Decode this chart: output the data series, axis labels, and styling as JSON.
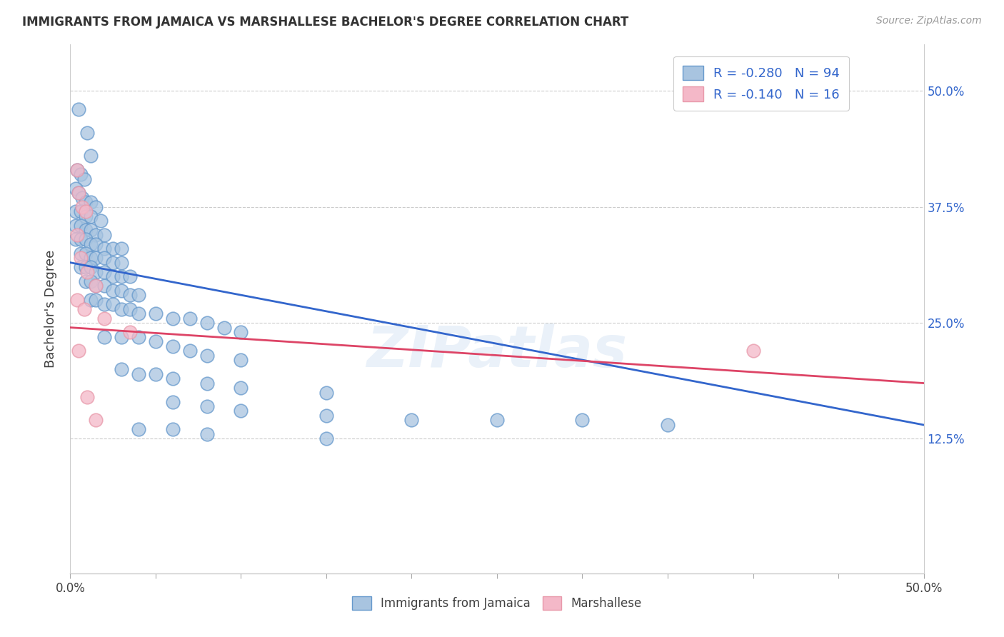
{
  "title": "IMMIGRANTS FROM JAMAICA VS MARSHALLESE BACHELOR'S DEGREE CORRELATION CHART",
  "source": "Source: ZipAtlas.com",
  "ylabel": "Bachelor's Degree",
  "xlim": [
    0.0,
    0.5
  ],
  "ylim": [
    -0.02,
    0.55
  ],
  "ytick_labels": [
    "12.5%",
    "25.0%",
    "37.5%",
    "50.0%"
  ],
  "ytick_values": [
    0.125,
    0.25,
    0.375,
    0.5
  ],
  "xtick_values": [
    0.0,
    0.05,
    0.1,
    0.15,
    0.2,
    0.25,
    0.3,
    0.35,
    0.4,
    0.45,
    0.5
  ],
  "legend_blue_R": "R = -0.280",
  "legend_blue_N": "N = 94",
  "legend_pink_R": "R = -0.140",
  "legend_pink_N": "N = 16",
  "legend_label_blue": "Immigrants from Jamaica",
  "legend_label_pink": "Marshallese",
  "blue_color": "#a8c4e0",
  "pink_color": "#f4b8c8",
  "blue_edge_color": "#6699cc",
  "pink_edge_color": "#e899aa",
  "blue_line_color": "#3366cc",
  "pink_line_color": "#dd4466",
  "watermark": "ZIPatlas",
  "blue_scatter": [
    [
      0.005,
      0.48
    ],
    [
      0.01,
      0.455
    ],
    [
      0.012,
      0.43
    ],
    [
      0.004,
      0.415
    ],
    [
      0.006,
      0.41
    ],
    [
      0.008,
      0.405
    ],
    [
      0.003,
      0.395
    ],
    [
      0.005,
      0.39
    ],
    [
      0.007,
      0.385
    ],
    [
      0.009,
      0.38
    ],
    [
      0.012,
      0.38
    ],
    [
      0.015,
      0.375
    ],
    [
      0.003,
      0.37
    ],
    [
      0.006,
      0.37
    ],
    [
      0.009,
      0.365
    ],
    [
      0.012,
      0.365
    ],
    [
      0.018,
      0.36
    ],
    [
      0.003,
      0.355
    ],
    [
      0.006,
      0.355
    ],
    [
      0.009,
      0.35
    ],
    [
      0.012,
      0.35
    ],
    [
      0.015,
      0.345
    ],
    [
      0.02,
      0.345
    ],
    [
      0.003,
      0.34
    ],
    [
      0.006,
      0.34
    ],
    [
      0.009,
      0.34
    ],
    [
      0.012,
      0.335
    ],
    [
      0.015,
      0.335
    ],
    [
      0.02,
      0.33
    ],
    [
      0.025,
      0.33
    ],
    [
      0.03,
      0.33
    ],
    [
      0.006,
      0.325
    ],
    [
      0.009,
      0.325
    ],
    [
      0.012,
      0.32
    ],
    [
      0.015,
      0.32
    ],
    [
      0.02,
      0.32
    ],
    [
      0.025,
      0.315
    ],
    [
      0.03,
      0.315
    ],
    [
      0.006,
      0.31
    ],
    [
      0.009,
      0.31
    ],
    [
      0.012,
      0.31
    ],
    [
      0.015,
      0.305
    ],
    [
      0.02,
      0.305
    ],
    [
      0.025,
      0.3
    ],
    [
      0.03,
      0.3
    ],
    [
      0.035,
      0.3
    ],
    [
      0.009,
      0.295
    ],
    [
      0.012,
      0.295
    ],
    [
      0.015,
      0.29
    ],
    [
      0.02,
      0.29
    ],
    [
      0.025,
      0.285
    ],
    [
      0.03,
      0.285
    ],
    [
      0.035,
      0.28
    ],
    [
      0.04,
      0.28
    ],
    [
      0.012,
      0.275
    ],
    [
      0.015,
      0.275
    ],
    [
      0.02,
      0.27
    ],
    [
      0.025,
      0.27
    ],
    [
      0.03,
      0.265
    ],
    [
      0.035,
      0.265
    ],
    [
      0.04,
      0.26
    ],
    [
      0.05,
      0.26
    ],
    [
      0.06,
      0.255
    ],
    [
      0.07,
      0.255
    ],
    [
      0.08,
      0.25
    ],
    [
      0.09,
      0.245
    ],
    [
      0.1,
      0.24
    ],
    [
      0.02,
      0.235
    ],
    [
      0.03,
      0.235
    ],
    [
      0.04,
      0.235
    ],
    [
      0.05,
      0.23
    ],
    [
      0.06,
      0.225
    ],
    [
      0.07,
      0.22
    ],
    [
      0.08,
      0.215
    ],
    [
      0.1,
      0.21
    ],
    [
      0.03,
      0.2
    ],
    [
      0.04,
      0.195
    ],
    [
      0.05,
      0.195
    ],
    [
      0.06,
      0.19
    ],
    [
      0.08,
      0.185
    ],
    [
      0.1,
      0.18
    ],
    [
      0.15,
      0.175
    ],
    [
      0.06,
      0.165
    ],
    [
      0.08,
      0.16
    ],
    [
      0.1,
      0.155
    ],
    [
      0.15,
      0.15
    ],
    [
      0.2,
      0.145
    ],
    [
      0.25,
      0.145
    ],
    [
      0.3,
      0.145
    ],
    [
      0.04,
      0.135
    ],
    [
      0.06,
      0.135
    ],
    [
      0.08,
      0.13
    ],
    [
      0.15,
      0.125
    ],
    [
      0.35,
      0.14
    ]
  ],
  "pink_scatter": [
    [
      0.004,
      0.415
    ],
    [
      0.005,
      0.39
    ],
    [
      0.007,
      0.375
    ],
    [
      0.009,
      0.37
    ],
    [
      0.004,
      0.345
    ],
    [
      0.006,
      0.32
    ],
    [
      0.01,
      0.305
    ],
    [
      0.015,
      0.29
    ],
    [
      0.004,
      0.275
    ],
    [
      0.008,
      0.265
    ],
    [
      0.02,
      0.255
    ],
    [
      0.035,
      0.24
    ],
    [
      0.005,
      0.22
    ],
    [
      0.01,
      0.17
    ],
    [
      0.015,
      0.145
    ],
    [
      0.4,
      0.22
    ]
  ],
  "blue_trend_x": [
    0.0,
    0.5
  ],
  "blue_trend_y": [
    0.315,
    0.14
  ],
  "pink_trend_x": [
    0.0,
    0.5
  ],
  "pink_trend_y": [
    0.245,
    0.185
  ]
}
